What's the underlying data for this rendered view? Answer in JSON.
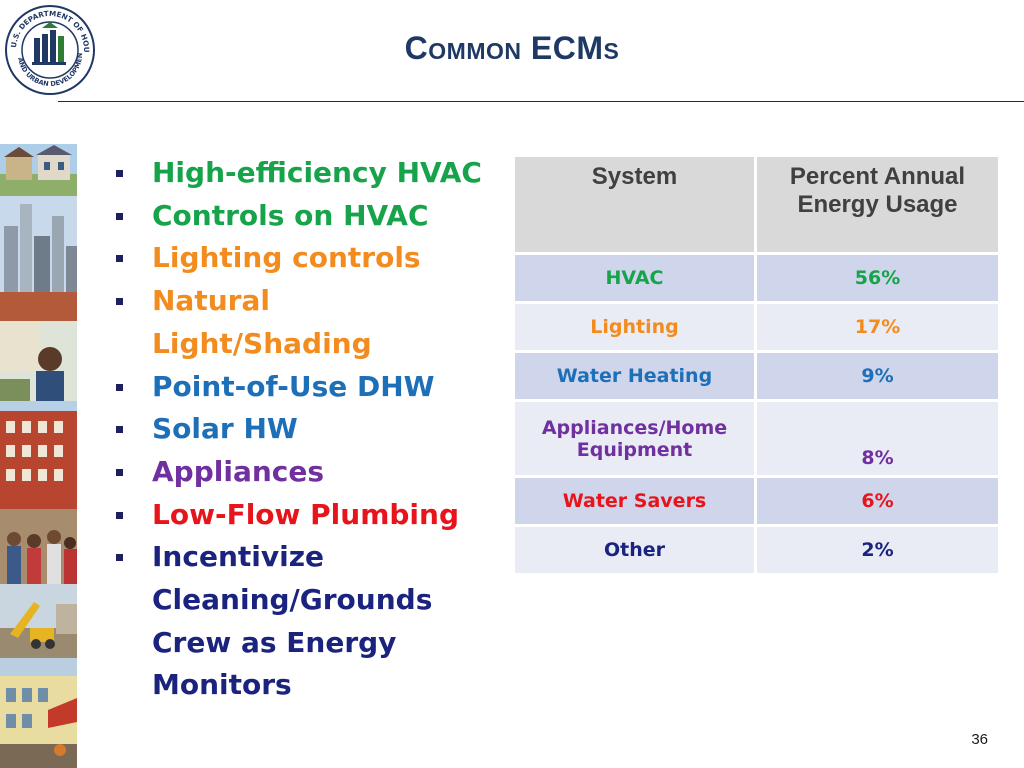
{
  "logo": {
    "name": "hud-seal",
    "text": "U.S. DEPARTMENT OF HOUSING AND URBAN DEVELOPMENT"
  },
  "slide": {
    "title_cap1": "C",
    "title_small1": "OMMON",
    "title_rest": " ECM",
    "title_small2": "S",
    "page_number": "36"
  },
  "bullets": [
    {
      "text": "High-efficiency HVAC",
      "color": "#16a34a"
    },
    {
      "text": "Controls on HVAC",
      "color": "#16a34a"
    },
    {
      "text": "Lighting controls",
      "color": "#f28c1e"
    },
    {
      "text": "Natural Light/Shading",
      "color": "#f28c1e"
    },
    {
      "text": "Point-of-Use DHW",
      "color": "#1d6fb8"
    },
    {
      "text": "Solar HW",
      "color": "#1d6fb8"
    },
    {
      "text": "Appliances",
      "color": "#7030a0"
    },
    {
      "text": "Low-Flow Plumbing",
      "color": "#e8141c"
    },
    {
      "text": "Incentivize",
      "color": "#1a237e"
    },
    {
      "text": "Cleaning/Grounds",
      "color": "#1a237e",
      "continuation": true
    },
    {
      "text": "Crew as Energy",
      "color": "#1a237e",
      "continuation": true
    },
    {
      "text": "Monitors",
      "color": "#1a237e",
      "continuation": true
    }
  ],
  "table": {
    "headers": [
      "System",
      "Percent Annual Energy Usage"
    ],
    "rows": [
      {
        "system": "HVAC",
        "percent": "56%",
        "color": "#16a34a"
      },
      {
        "system": "Lighting",
        "percent": "17%",
        "color": "#f28c1e"
      },
      {
        "system": "Water Heating",
        "percent": "9%",
        "color": "#1d6fb8"
      },
      {
        "system": "Appliances/Home Equipment",
        "percent": "8%",
        "color": "#7030a0"
      },
      {
        "system": "Water Savers",
        "percent": "6%",
        "color": "#e8141c"
      },
      {
        "system": "Other",
        "percent": "2%",
        "color": "#1a237e"
      }
    ]
  },
  "photos": [
    "houses",
    "skyline",
    "resident",
    "brick-apartments",
    "families",
    "construction",
    "storefront"
  ]
}
